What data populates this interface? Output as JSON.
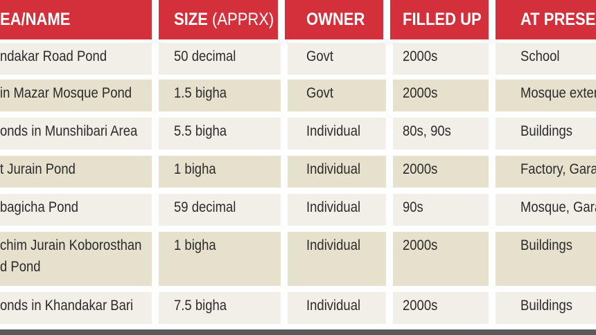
{
  "headers": [
    {
      "main": "EA/NAME",
      "sub": ""
    },
    {
      "main": "SIZE",
      "sub": " (APPRX)"
    },
    {
      "main": "OWNER",
      "sub": ""
    },
    {
      "main": "FILLED UP",
      "sub": ""
    },
    {
      "main": "AT PRESEN",
      "sub": ""
    }
  ],
  "rows": [
    {
      "name": [
        "ndakar Road Pond"
      ],
      "size": "50 decimal",
      "owner": "Govt",
      "filled": "2000s",
      "present": "School"
    },
    {
      "name": [
        "in Mazar Mosque Pond"
      ],
      "size": "1.5 bigha",
      "owner": "Govt",
      "filled": "2000s",
      "present": "Mosque exten"
    },
    {
      "name": [
        "onds in Munshibari Area"
      ],
      "size": "5.5 bigha",
      "owner": "Individual",
      "filled": "80s, 90s",
      "present": "Buildings"
    },
    {
      "name": [
        "t Jurain Pond"
      ],
      "size": "1 bigha",
      "owner": "Individual",
      "filled": "2000s",
      "present": "Factory, Garag"
    },
    {
      "name": [
        "bagicha Pond"
      ],
      "size": "59 decimal",
      "owner": "Individual",
      "filled": "90s",
      "present": "Mosque, Gara"
    },
    {
      "name": [
        "chim Jurain Koborosthan",
        "d Pond"
      ],
      "size": "1 bigha",
      "owner": "Individual",
      "filled": "2000s",
      "present": "Buildings"
    },
    {
      "name": [
        "onds in Khandakar Bari"
      ],
      "size": "7.5 bigha",
      "owner": "Individual",
      "filled": "2000s",
      "present": "Buildings"
    }
  ],
  "colors": {
    "header": "#d3303b",
    "row_light": "#f1efe7",
    "row_dark": "#e6e1cc",
    "text": "#2b2b2b",
    "bottom_bar": "#5a5a5a"
  }
}
